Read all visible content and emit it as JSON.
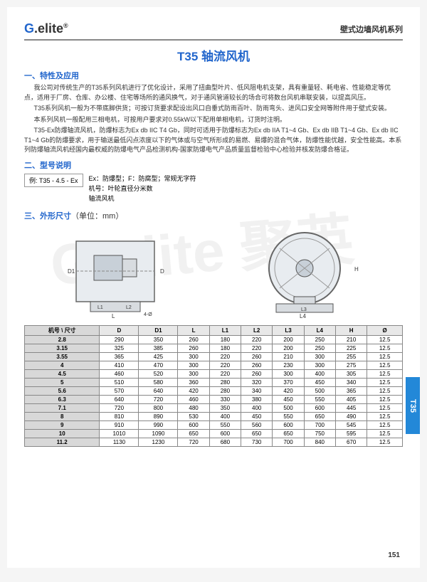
{
  "logo": {
    "prefix": "G",
    "suffix": ".elite",
    "sup": "®"
  },
  "header_right": "壁式边墙风机系列",
  "title": "T35 轴流风机",
  "sections": {
    "s1": {
      "title": "一、特性及应用",
      "p": [
        "我公司对传统生产的T35系列风机进行了优化设计，采用了扭曲型叶片、低风阻电机支架，具有重量轻、耗电省、性能稳定等优点，适用于厂房、仓库、办公楼、住宅等场所的通风换气，对于通风管道较长的场合可将数台风机串联安装，以提高风压。",
        "T35系列风机一般为不带底脚供货；可按订货要求配设出风口自垂式防雨百叶、防雨弯头、进风口安全网等附件用于壁式安装。",
        "本系列风机一般配用三相电机，可按用户要求对0.55kW以下配用单相电机，订货时注明。",
        "T35-Ex防爆轴流风机，防爆标志为Ex db IIC T4 Gb，同时可适用于防爆标志为Ex db IIA T1~4 Gb、Ex db IIB T1~4 Gb、Ex db IIC T1~4 Gb的防爆要求，用于输送最低闪点浓度以下的气体或与空气所形成的易燃、易爆的混合气体，防爆性能优越，安全性能高。本系列防爆轴流风机经国内最权威的防爆电气产品检测机构-国家防爆电气产品质量监督检验中心检验并核发防爆合格证。"
      ]
    },
    "s2": {
      "title": "二、型号说明",
      "example": "例: T35 - 4.5 - Ex",
      "lines": [
        "Ex：防爆型；F：防腐型；常规无字符",
        "机号：叶轮直径分米数",
        "轴流风机"
      ]
    },
    "s3": {
      "title": "三、外形尺寸",
      "unit": "（单位：mm）"
    }
  },
  "table": {
    "corner": "尺寸",
    "corner2": "机号",
    "columns": [
      "D",
      "D1",
      "L",
      "L1",
      "L2",
      "L3",
      "L4",
      "H",
      "Ø"
    ],
    "rows": [
      [
        "2.8",
        "290",
        "350",
        "260",
        "180",
        "220",
        "200",
        "250",
        "210",
        "12.5"
      ],
      [
        "3.15",
        "325",
        "385",
        "260",
        "180",
        "220",
        "200",
        "250",
        "225",
        "12.5"
      ],
      [
        "3.55",
        "365",
        "425",
        "300",
        "220",
        "260",
        "210",
        "300",
        "255",
        "12.5"
      ],
      [
        "4",
        "410",
        "470",
        "300",
        "220",
        "260",
        "230",
        "300",
        "275",
        "12.5"
      ],
      [
        "4.5",
        "460",
        "520",
        "300",
        "220",
        "260",
        "300",
        "400",
        "305",
        "12.5"
      ],
      [
        "5",
        "510",
        "580",
        "360",
        "280",
        "320",
        "370",
        "450",
        "340",
        "12.5"
      ],
      [
        "5.6",
        "570",
        "640",
        "420",
        "280",
        "340",
        "420",
        "500",
        "365",
        "12.5"
      ],
      [
        "6.3",
        "640",
        "720",
        "460",
        "330",
        "380",
        "450",
        "550",
        "405",
        "12.5"
      ],
      [
        "7.1",
        "720",
        "800",
        "480",
        "350",
        "400",
        "500",
        "600",
        "445",
        "12.5"
      ],
      [
        "8",
        "810",
        "890",
        "530",
        "400",
        "450",
        "550",
        "650",
        "490",
        "12.5"
      ],
      [
        "9",
        "910",
        "990",
        "600",
        "550",
        "560",
        "600",
        "700",
        "545",
        "12.5"
      ],
      [
        "10",
        "1010",
        "1090",
        "650",
        "600",
        "650",
        "650",
        "750",
        "595",
        "12.5"
      ],
      [
        "11.2",
        "1130",
        "1230",
        "720",
        "680",
        "730",
        "700",
        "840",
        "670",
        "12.5"
      ]
    ]
  },
  "side_tab": "T35",
  "page_num": "151",
  "watermark": "G.elite 聚英",
  "colors": {
    "accent": "#2266cc",
    "tab": "#2388d8"
  }
}
